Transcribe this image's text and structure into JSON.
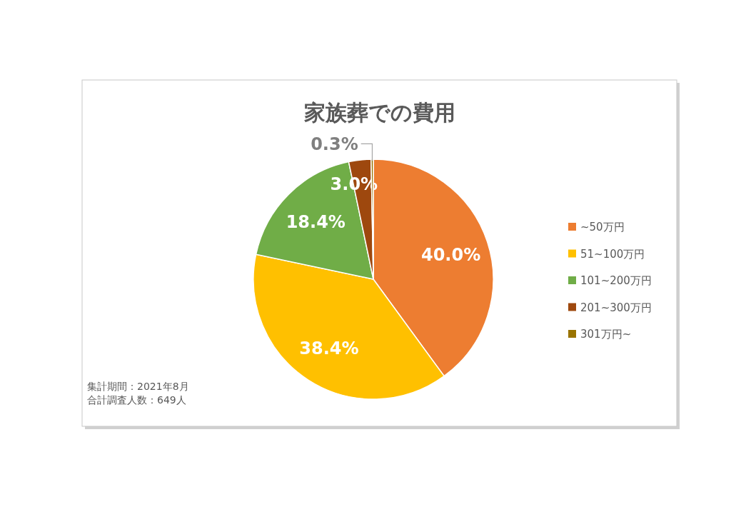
{
  "chart_data": {
    "type": "pie",
    "title": "家族葬での費用",
    "categories": [
      "~50万円",
      "51~100万円",
      "101~200万円",
      "201~300万円",
      "301万円~"
    ],
    "values": [
      40.0,
      38.4,
      18.4,
      3.0,
      0.3
    ],
    "colors": [
      "#ed7d31",
      "#ffc000",
      "#70ad47",
      "#9e480e",
      "#997300"
    ],
    "value_labels": [
      "40.0%",
      "38.4%",
      "18.4%",
      "3.0%",
      "0.3%"
    ],
    "legend": "right",
    "annotations": [
      "集計期間：2021年8月",
      "合計調査人数：649人"
    ]
  }
}
